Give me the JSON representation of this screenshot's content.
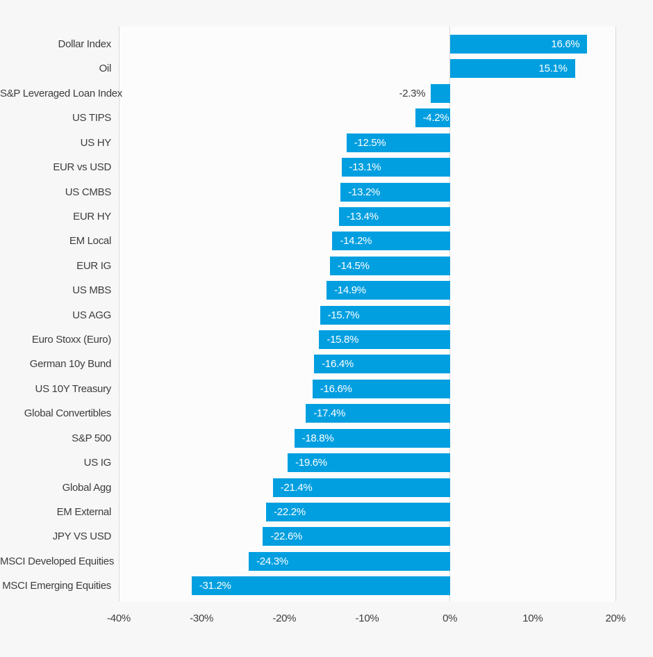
{
  "chart_data": {
    "type": "bar",
    "orientation": "horizontal",
    "title": "",
    "xlabel": "",
    "ylabel": "",
    "categories": [
      "Dollar Index",
      "Oil",
      "S&P Leveraged Loan Index",
      "US TIPS",
      "US HY",
      "EUR vs USD",
      "US CMBS",
      "EUR HY",
      "EM Local",
      "EUR IG",
      "US MBS",
      "US AGG",
      "Euro Stoxx (Euro)",
      "German 10y Bund",
      "US 10Y Treasury",
      "Global Convertibles",
      "S&P 500",
      "US IG",
      "Global Agg",
      "EM External",
      "JPY VS USD",
      "MSCI Developed Equities",
      "MSCI Emerging Equities"
    ],
    "values": [
      16.6,
      15.1,
      -2.3,
      -4.2,
      -12.5,
      -13.1,
      -13.2,
      -13.4,
      -14.2,
      -14.5,
      -14.9,
      -15.7,
      -15.8,
      -16.4,
      -16.6,
      -17.4,
      -18.8,
      -19.6,
      -21.4,
      -22.2,
      -22.6,
      -24.3,
      -31.2
    ],
    "value_labels": [
      "16.6%",
      "15.1%",
      "-2.3%",
      "-4.2%",
      "-12.5%",
      "-13.1%",
      "-13.2%",
      "-13.4%",
      "-14.2%",
      "-14.5%",
      "-14.9%",
      "-15.7%",
      "-15.8%",
      "-16.4%",
      "-16.6%",
      "-17.4%",
      "-18.8%",
      "-19.6%",
      "-21.4%",
      "-22.2%",
      "-22.6%",
      "-24.3%",
      "-31.2%"
    ],
    "xlim": [
      -40,
      20
    ],
    "x_ticks": [
      -40,
      -30,
      -20,
      -10,
      0,
      10,
      20
    ],
    "x_tick_labels": [
      "-40%",
      "-30%",
      "-20%",
      "-10%",
      "0%",
      "10%",
      "20%"
    ],
    "gridline_ticks": [
      -40,
      0,
      20
    ],
    "grid": "vertical lines at -40%, 0% and 20% only",
    "legend": null,
    "colors": {
      "bar": "#029fe0",
      "background": "#f7f7f7",
      "plot_background": "#fcfcfc",
      "grid": "#d9d9d9",
      "text": "#3d3d3d",
      "bar_label": "#ffffff"
    }
  }
}
